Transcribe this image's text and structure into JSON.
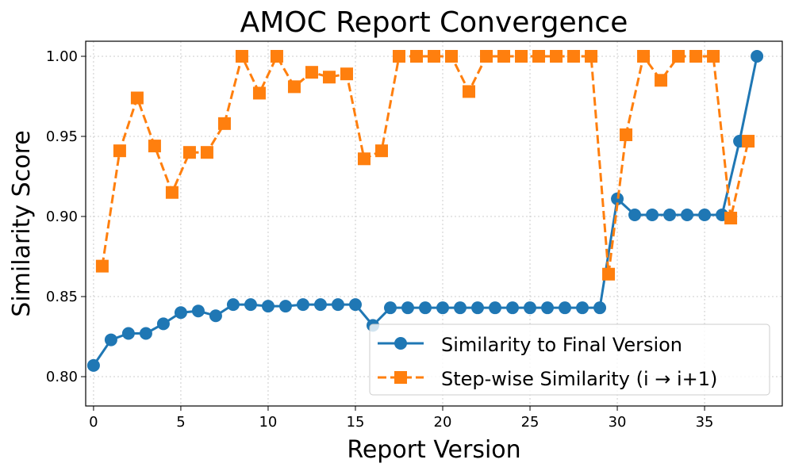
{
  "chart_data": {
    "type": "line",
    "title": "AMOC Report Convergence",
    "xlabel": "Report Version",
    "ylabel": "Similarity Score",
    "xlim": [
      -0.45,
      39.45
    ],
    "ylim": [
      0.7817,
      1.0094
    ],
    "xticks": [
      0,
      5,
      10,
      15,
      20,
      25,
      30,
      35
    ],
    "yticks": [
      0.8,
      0.85,
      0.9,
      0.95,
      1.0
    ],
    "ytick_labels": [
      "0.80",
      "0.85",
      "0.90",
      "0.95",
      "1.00"
    ],
    "grid": true,
    "legend_position": "lower-right",
    "series": [
      {
        "name": "Similarity to Final Version",
        "color": "#1f77b4",
        "linestyle": "solid",
        "marker": "circle",
        "x": [
          0,
          1,
          2,
          3,
          4,
          5,
          6,
          7,
          8,
          9,
          10,
          11,
          12,
          13,
          14,
          15,
          16,
          17,
          18,
          19,
          20,
          21,
          22,
          23,
          24,
          25,
          26,
          27,
          28,
          29,
          30,
          31,
          32,
          33,
          34,
          35,
          36,
          37,
          38
        ],
        "y": [
          0.807,
          0.823,
          0.827,
          0.827,
          0.833,
          0.84,
          0.841,
          0.838,
          0.845,
          0.845,
          0.844,
          0.844,
          0.845,
          0.845,
          0.845,
          0.845,
          0.832,
          0.843,
          0.843,
          0.843,
          0.843,
          0.843,
          0.843,
          0.843,
          0.843,
          0.843,
          0.843,
          0.843,
          0.843,
          0.843,
          0.911,
          0.901,
          0.901,
          0.901,
          0.901,
          0.901,
          0.901,
          0.947,
          1.0
        ]
      },
      {
        "name": "Step-wise Similarity (i → i+1)",
        "color": "#ff7f0e",
        "linestyle": "dashed",
        "marker": "square",
        "x": [
          0.5,
          1.5,
          2.5,
          3.5,
          4.5,
          5.5,
          6.5,
          7.5,
          8.5,
          9.5,
          10.5,
          11.5,
          12.5,
          13.5,
          14.5,
          15.5,
          16.5,
          17.5,
          18.5,
          19.5,
          20.5,
          21.5,
          22.5,
          23.5,
          24.5,
          25.5,
          26.5,
          27.5,
          28.5,
          29.5,
          30.5,
          31.5,
          32.5,
          33.5,
          34.5,
          35.5,
          36.5,
          37.5
        ],
        "y": [
          0.869,
          0.941,
          0.974,
          0.944,
          0.915,
          0.94,
          0.94,
          0.958,
          1.0,
          0.977,
          1.0,
          0.981,
          0.99,
          0.987,
          0.989,
          0.936,
          0.941,
          1.0,
          1.0,
          1.0,
          1.0,
          0.978,
          1.0,
          1.0,
          1.0,
          1.0,
          1.0,
          1.0,
          1.0,
          0.864,
          0.951,
          1.0,
          0.985,
          1.0,
          1.0,
          1.0,
          0.899,
          0.947
        ]
      }
    ]
  }
}
